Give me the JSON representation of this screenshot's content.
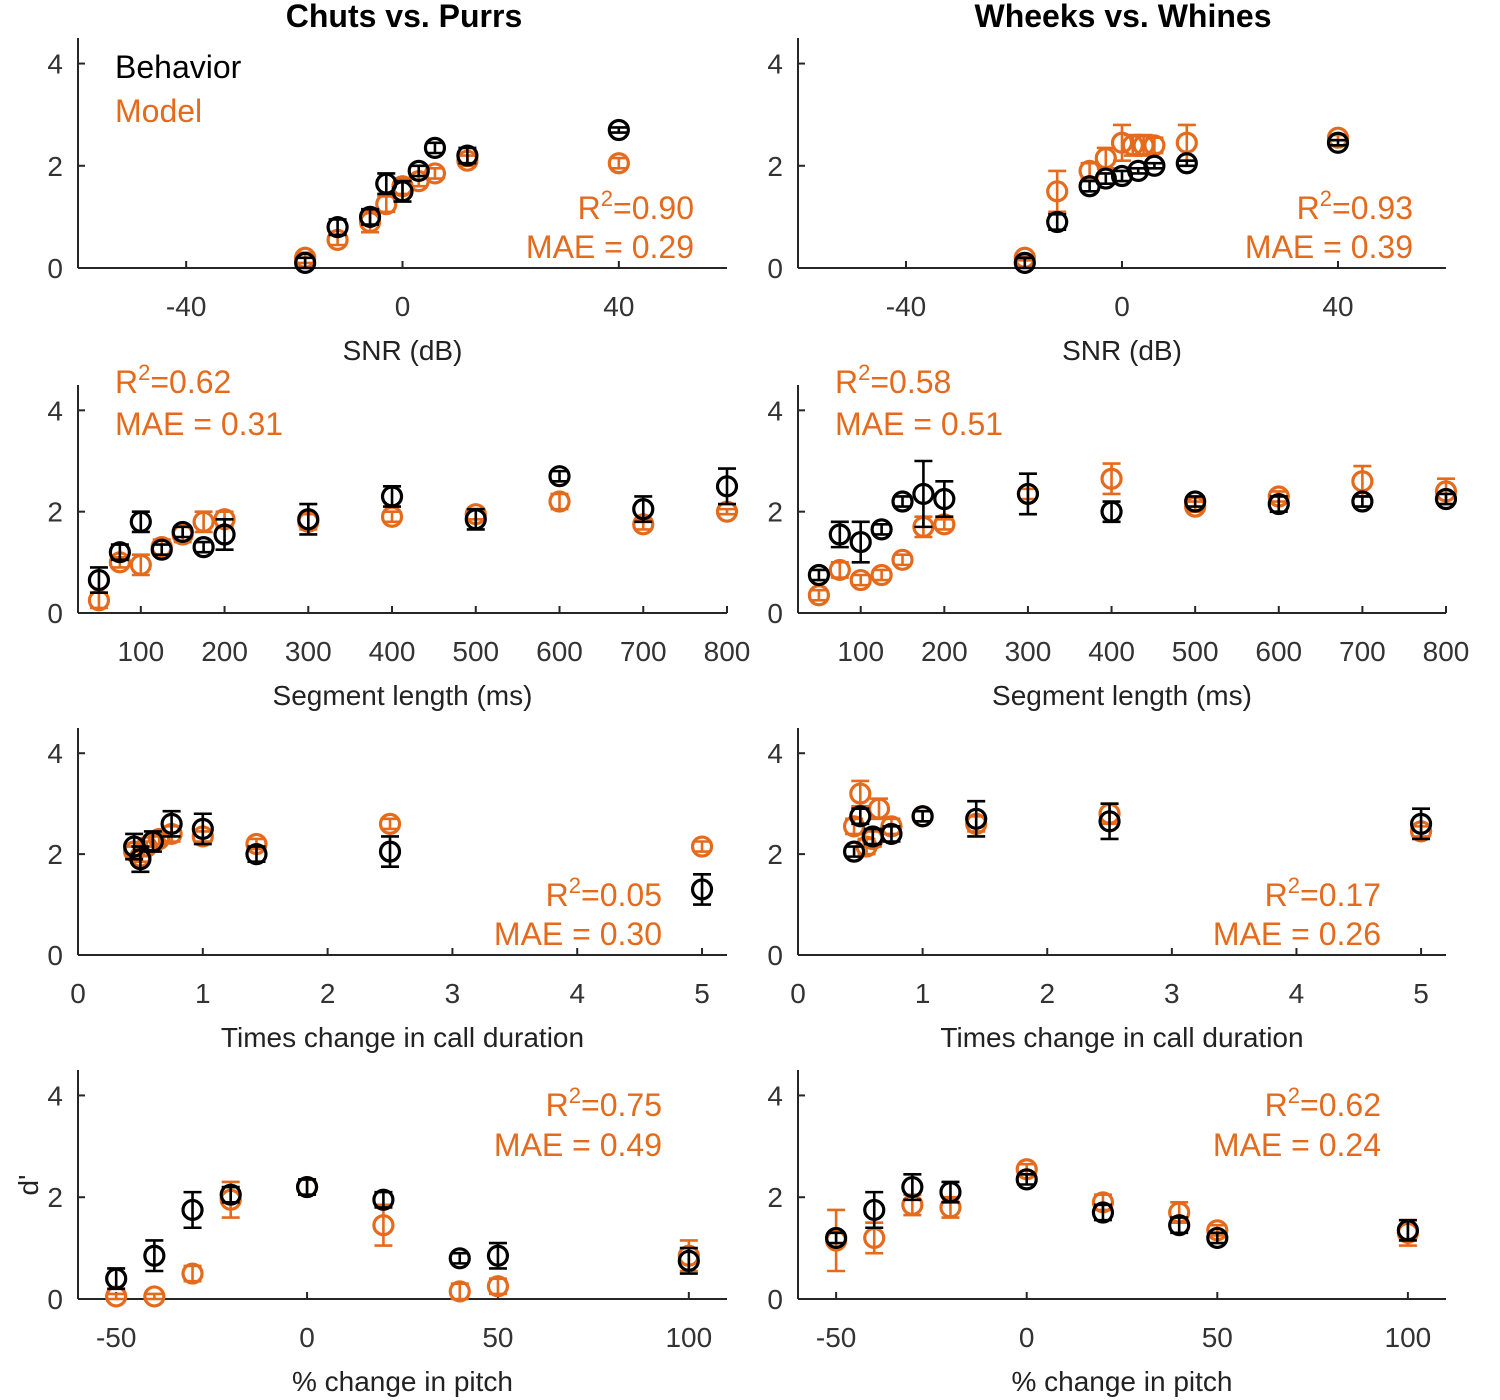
{
  "colors": {
    "behavior": "#000000",
    "model": "#e56a1c",
    "axis": "#262626"
  },
  "legend": {
    "behavior": "Behavior",
    "model": "Model"
  },
  "chart_data": [
    {
      "id": "snr-chuts",
      "type": "scatter",
      "title": "Chuts vs. Purrs",
      "xlabel": "SNR (dB)",
      "ylabel": "",
      "xlim": [
        -60,
        60
      ],
      "ylim": [
        0,
        4.5
      ],
      "xticks": [
        -40,
        0,
        40
      ],
      "xtick_labels": [
        "-40",
        "0",
        "40"
      ],
      "yticks": [
        0,
        2,
        4
      ],
      "ytick_labels": [
        "0",
        "2",
        "4"
      ],
      "stats": {
        "r2": "=0.90",
        "mae": "MAE = 0.29",
        "placement": "bottom-right"
      },
      "series": [
        {
          "name": "Model",
          "x": [
            -18,
            -12,
            -6,
            -3,
            0,
            3,
            6,
            12,
            40
          ],
          "y": [
            0.2,
            0.55,
            0.9,
            1.25,
            1.6,
            1.7,
            1.85,
            2.1,
            2.05
          ],
          "err": [
            0.1,
            0.1,
            0.2,
            0.15,
            0.15,
            0.1,
            0.1,
            0.1,
            0.1
          ]
        },
        {
          "name": "Behavior",
          "x": [
            -18,
            -12,
            -6,
            -3,
            0,
            3,
            6,
            12,
            40
          ],
          "y": [
            0.1,
            0.8,
            1.0,
            1.65,
            1.5,
            1.9,
            2.35,
            2.2,
            2.7
          ],
          "err": [
            0.1,
            0.15,
            0.15,
            0.2,
            0.2,
            0.1,
            0.1,
            0.15,
            0.05
          ]
        }
      ]
    },
    {
      "id": "snr-wheeks",
      "type": "scatter",
      "title": "Wheeks vs. Whines",
      "xlabel": "SNR (dB)",
      "ylabel": "",
      "xlim": [
        -60,
        60
      ],
      "ylim": [
        0,
        4.5
      ],
      "xticks": [
        -40,
        0,
        40
      ],
      "xtick_labels": [
        "-40",
        "0",
        "40"
      ],
      "yticks": [
        0,
        2,
        4
      ],
      "ytick_labels": [
        "0",
        "2",
        "4"
      ],
      "stats": {
        "r2": "=0.93",
        "mae": "MAE = 0.39",
        "placement": "bottom-right"
      },
      "series": [
        {
          "name": "Model",
          "x": [
            -18,
            -12,
            -6,
            -3,
            0,
            2,
            4,
            6,
            12,
            40
          ],
          "y": [
            0.2,
            1.5,
            1.9,
            2.15,
            2.45,
            2.4,
            2.4,
            2.4,
            2.45,
            2.55
          ],
          "err": [
            0.05,
            0.4,
            0.15,
            0.2,
            0.35,
            0.2,
            0.2,
            0.15,
            0.35,
            0.05
          ]
        },
        {
          "name": "Behavior",
          "x": [
            -18,
            -12,
            -6,
            -3,
            0,
            3,
            6,
            12,
            40
          ],
          "y": [
            0.1,
            0.9,
            1.6,
            1.75,
            1.8,
            1.9,
            2.0,
            2.05,
            2.45
          ],
          "err": [
            0.1,
            0.15,
            0.1,
            0.1,
            0.1,
            0.05,
            0.05,
            0.05,
            0.05
          ]
        }
      ]
    },
    {
      "id": "seg-chuts",
      "type": "scatter",
      "title": "",
      "xlabel": "Segment length (ms)",
      "ylabel": "",
      "xlim": [
        25,
        800
      ],
      "ylim": [
        0,
        4.5
      ],
      "xticks": [
        100,
        200,
        300,
        400,
        500,
        600,
        700,
        800
      ],
      "xtick_labels": [
        "100",
        "200",
        "300",
        "400",
        "500",
        "600",
        "700",
        "800"
      ],
      "yticks": [
        0,
        2,
        4
      ],
      "ytick_labels": [
        "0",
        "2",
        "4"
      ],
      "stats": {
        "r2": "=0.62",
        "mae": "MAE = 0.31",
        "placement": "top-left"
      },
      "series": [
        {
          "name": "Model",
          "x": [
            50,
            75,
            100,
            125,
            150,
            175,
            200,
            300,
            400,
            500,
            600,
            700,
            800
          ],
          "y": [
            0.25,
            1.0,
            0.95,
            1.3,
            1.55,
            1.8,
            1.85,
            1.8,
            1.9,
            1.95,
            2.2,
            1.75,
            2.0
          ],
          "err": [
            0.15,
            0.1,
            0.2,
            0.15,
            0.15,
            0.2,
            0.15,
            0.15,
            0.1,
            0.1,
            0.15,
            0.1,
            0.05
          ]
        },
        {
          "name": "Behavior",
          "x": [
            50,
            75,
            100,
            125,
            150,
            175,
            200,
            300,
            400,
            500,
            600,
            700,
            800
          ],
          "y": [
            0.65,
            1.2,
            1.8,
            1.25,
            1.6,
            1.3,
            1.55,
            1.85,
            2.3,
            1.85,
            2.7,
            2.05,
            2.5
          ],
          "err": [
            0.25,
            0.15,
            0.2,
            0.1,
            0.1,
            0.1,
            0.3,
            0.3,
            0.2,
            0.2,
            0.1,
            0.25,
            0.35
          ]
        }
      ]
    },
    {
      "id": "seg-wheeks",
      "type": "scatter",
      "title": "",
      "xlabel": "Segment length (ms)",
      "ylabel": "",
      "xlim": [
        25,
        800
      ],
      "ylim": [
        0,
        4.5
      ],
      "xticks": [
        100,
        200,
        300,
        400,
        500,
        600,
        700,
        800
      ],
      "xtick_labels": [
        "100",
        "200",
        "300",
        "400",
        "500",
        "600",
        "700",
        "800"
      ],
      "yticks": [
        0,
        2,
        4
      ],
      "ytick_labels": [
        "0",
        "2",
        "4"
      ],
      "stats": {
        "r2": "=0.58",
        "mae": "MAE = 0.51",
        "placement": "top-left"
      },
      "series": [
        {
          "name": "Model",
          "x": [
            50,
            75,
            100,
            125,
            150,
            175,
            200,
            300,
            400,
            500,
            600,
            700,
            800
          ],
          "y": [
            0.35,
            0.85,
            0.65,
            0.75,
            1.05,
            1.7,
            1.75,
            2.35,
            2.65,
            2.1,
            2.3,
            2.6,
            2.4
          ],
          "err": [
            0.1,
            0.15,
            0.1,
            0.1,
            0.1,
            0.2,
            0.1,
            0.1,
            0.3,
            0.1,
            0.1,
            0.3,
            0.25
          ]
        },
        {
          "name": "Behavior",
          "x": [
            50,
            75,
            100,
            125,
            150,
            175,
            200,
            300,
            400,
            500,
            600,
            700,
            800
          ],
          "y": [
            0.75,
            1.55,
            1.4,
            1.65,
            2.2,
            2.35,
            2.25,
            2.35,
            2.0,
            2.2,
            2.15,
            2.2,
            2.25
          ],
          "err": [
            0.1,
            0.25,
            0.4,
            0.1,
            0.1,
            0.65,
            0.35,
            0.4,
            0.2,
            0.1,
            0.15,
            0.1,
            0.1
          ]
        }
      ]
    },
    {
      "id": "dur-chuts",
      "type": "scatter",
      "title": "",
      "xlabel": "Times change in call duration",
      "ylabel": "",
      "xlim": [
        0,
        5.2
      ],
      "ylim": [
        0,
        4.5
      ],
      "xticks": [
        0,
        1,
        2,
        3,
        4,
        5
      ],
      "xtick_labels": [
        "0",
        "1",
        "2",
        "3",
        "4",
        "5"
      ],
      "yticks": [
        0,
        2,
        4
      ],
      "ytick_labels": [
        "0",
        "2",
        "4"
      ],
      "stats": {
        "r2": "=0.05",
        "mae": "MAE = 0.30",
        "placement": "bottom-right"
      },
      "series": [
        {
          "name": "Model",
          "x": [
            0.45,
            0.5,
            0.55,
            0.6,
            0.65,
            0.75,
            1.0,
            1.43,
            2.5,
            5.0
          ],
          "y": [
            2.05,
            1.95,
            2.15,
            2.25,
            2.3,
            2.4,
            2.35,
            2.2,
            2.6,
            2.15
          ],
          "err": [
            0.1,
            0.1,
            0.1,
            0.1,
            0.1,
            0.15,
            0.1,
            0.1,
            0.1,
            0.1
          ]
        },
        {
          "name": "Behavior",
          "x": [
            0.45,
            0.5,
            0.6,
            0.75,
            1.0,
            1.43,
            2.5,
            5.0
          ],
          "y": [
            2.15,
            1.9,
            2.25,
            2.6,
            2.5,
            2.0,
            2.05,
            1.3
          ],
          "err": [
            0.25,
            0.25,
            0.2,
            0.25,
            0.3,
            0.15,
            0.3,
            0.3
          ]
        }
      ]
    },
    {
      "id": "dur-wheeks",
      "type": "scatter",
      "title": "",
      "xlabel": "Times change in call duration",
      "ylabel": "",
      "xlim": [
        0,
        5.2
      ],
      "ylim": [
        0,
        4.5
      ],
      "xticks": [
        0,
        1,
        2,
        3,
        4,
        5
      ],
      "xtick_labels": [
        "0",
        "1",
        "2",
        "3",
        "4",
        "5"
      ],
      "yticks": [
        0,
        2,
        4
      ],
      "ytick_labels": [
        "0",
        "2",
        "4"
      ],
      "stats": {
        "r2": "=0.17",
        "mae": "MAE = 0.26",
        "placement": "bottom-right"
      },
      "series": [
        {
          "name": "Model",
          "x": [
            0.45,
            0.5,
            0.55,
            0.6,
            0.65,
            0.75,
            1.0,
            1.43,
            2.5,
            5.0
          ],
          "y": [
            2.55,
            3.2,
            2.15,
            2.3,
            2.9,
            2.55,
            2.75,
            2.6,
            2.8,
            2.45
          ],
          "err": [
            0.15,
            0.25,
            0.15,
            0.15,
            0.2,
            0.15,
            0.1,
            0.15,
            0.2,
            0.1
          ]
        },
        {
          "name": "Behavior",
          "x": [
            0.45,
            0.5,
            0.6,
            0.75,
            1.0,
            1.43,
            2.5,
            5.0
          ],
          "y": [
            2.05,
            2.75,
            2.35,
            2.4,
            2.75,
            2.7,
            2.65,
            2.6
          ],
          "err": [
            0.1,
            0.15,
            0.15,
            0.15,
            0.1,
            0.35,
            0.35,
            0.3
          ]
        }
      ]
    },
    {
      "id": "pitch-chuts",
      "type": "scatter",
      "title": "",
      "xlabel": "% change in pitch",
      "ylabel": "d'",
      "xlim": [
        -60,
        110
      ],
      "ylim": [
        0,
        4.5
      ],
      "xticks": [
        -50,
        0,
        50,
        100
      ],
      "xtick_labels": [
        "-50",
        "0",
        "50",
        "100"
      ],
      "yticks": [
        0,
        2,
        4
      ],
      "ytick_labels": [
        "0",
        "2",
        "4"
      ],
      "stats": {
        "r2": "=0.75",
        "mae": "MAE = 0.49",
        "placement": "top-right"
      },
      "series": [
        {
          "name": "Model",
          "x": [
            -50,
            -40,
            -30,
            -20,
            0,
            20,
            40,
            50,
            100
          ],
          "y": [
            0.05,
            0.05,
            0.5,
            1.95,
            2.2,
            1.45,
            0.15,
            0.25,
            0.85
          ],
          "err": [
            0.05,
            0.05,
            0.15,
            0.35,
            0.15,
            0.4,
            0.15,
            0.15,
            0.3
          ]
        },
        {
          "name": "Behavior",
          "x": [
            -50,
            -40,
            -30,
            -20,
            0,
            20,
            40,
            50,
            100
          ],
          "y": [
            0.4,
            0.85,
            1.75,
            2.05,
            2.2,
            1.95,
            0.8,
            0.85,
            0.75
          ],
          "err": [
            0.2,
            0.3,
            0.35,
            0.15,
            0.15,
            0.15,
            0.1,
            0.25,
            0.25
          ]
        }
      ]
    },
    {
      "id": "pitch-wheeks",
      "type": "scatter",
      "title": "",
      "xlabel": "% change in pitch",
      "ylabel": "",
      "xlim": [
        -60,
        110
      ],
      "ylim": [
        0,
        4.5
      ],
      "xticks": [
        -50,
        0,
        50,
        100
      ],
      "xtick_labels": [
        "-50",
        "0",
        "50",
        "100"
      ],
      "yticks": [
        0,
        2,
        4
      ],
      "ytick_labels": [
        "0",
        "2",
        "4"
      ],
      "stats": {
        "r2": "=0.62",
        "mae": "MAE = 0.24",
        "placement": "top-right"
      },
      "series": [
        {
          "name": "Model",
          "x": [
            -50,
            -40,
            -30,
            -20,
            0,
            20,
            40,
            50,
            100
          ],
          "y": [
            1.15,
            1.2,
            1.85,
            1.8,
            2.55,
            1.9,
            1.7,
            1.35,
            1.3
          ],
          "err": [
            0.6,
            0.3,
            0.2,
            0.2,
            0.1,
            0.15,
            0.2,
            0.1,
            0.25
          ]
        },
        {
          "name": "Behavior",
          "x": [
            -50,
            -40,
            -30,
            -20,
            0,
            20,
            40,
            50,
            100
          ],
          "y": [
            1.2,
            1.75,
            2.2,
            2.1,
            2.35,
            1.7,
            1.45,
            1.2,
            1.35
          ],
          "err": [
            0.1,
            0.35,
            0.25,
            0.2,
            0.1,
            0.15,
            0.15,
            0.1,
            0.2
          ]
        }
      ]
    }
  ]
}
